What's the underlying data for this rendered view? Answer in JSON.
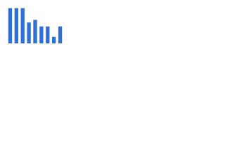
{
  "chart_data": {
    "type": "bar",
    "values": [
      54,
      54,
      54,
      32,
      36,
      26,
      26,
      10,
      26
    ],
    "color": "#2f6fd6",
    "ylim": [
      0,
      60
    ]
  }
}
